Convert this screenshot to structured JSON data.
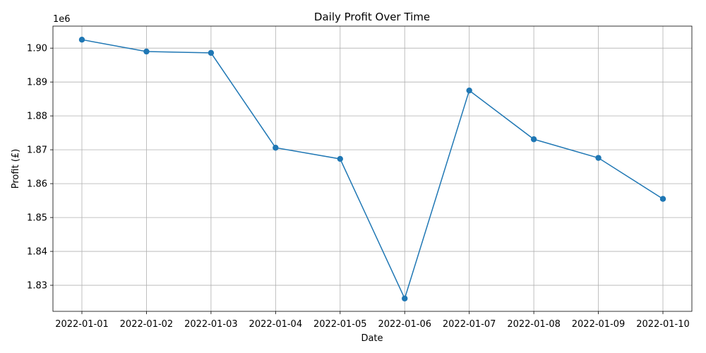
{
  "chart_data": {
    "type": "line",
    "title": "Daily Profit Over Time",
    "xlabel": "Date",
    "ylabel": "Profit (£)",
    "offset_label": "1e6",
    "x": [
      "2022-01-01",
      "2022-01-02",
      "2022-01-03",
      "2022-01-04",
      "2022-01-05",
      "2022-01-06",
      "2022-01-07",
      "2022-01-08",
      "2022-01-09",
      "2022-01-10"
    ],
    "series": [
      {
        "values": [
          1.9025,
          1.899,
          1.8986,
          1.8706,
          1.8673,
          1.8261,
          1.8875,
          1.8731,
          1.8676,
          1.8555
        ],
        "color": "#1f77b4",
        "marker": "circle"
      }
    ],
    "yticks": [
      "1.83",
      "1.84",
      "1.85",
      "1.86",
      "1.87",
      "1.88",
      "1.89",
      "1.90"
    ],
    "ylim": [
      1.8223,
      1.9065
    ],
    "grid": true
  }
}
